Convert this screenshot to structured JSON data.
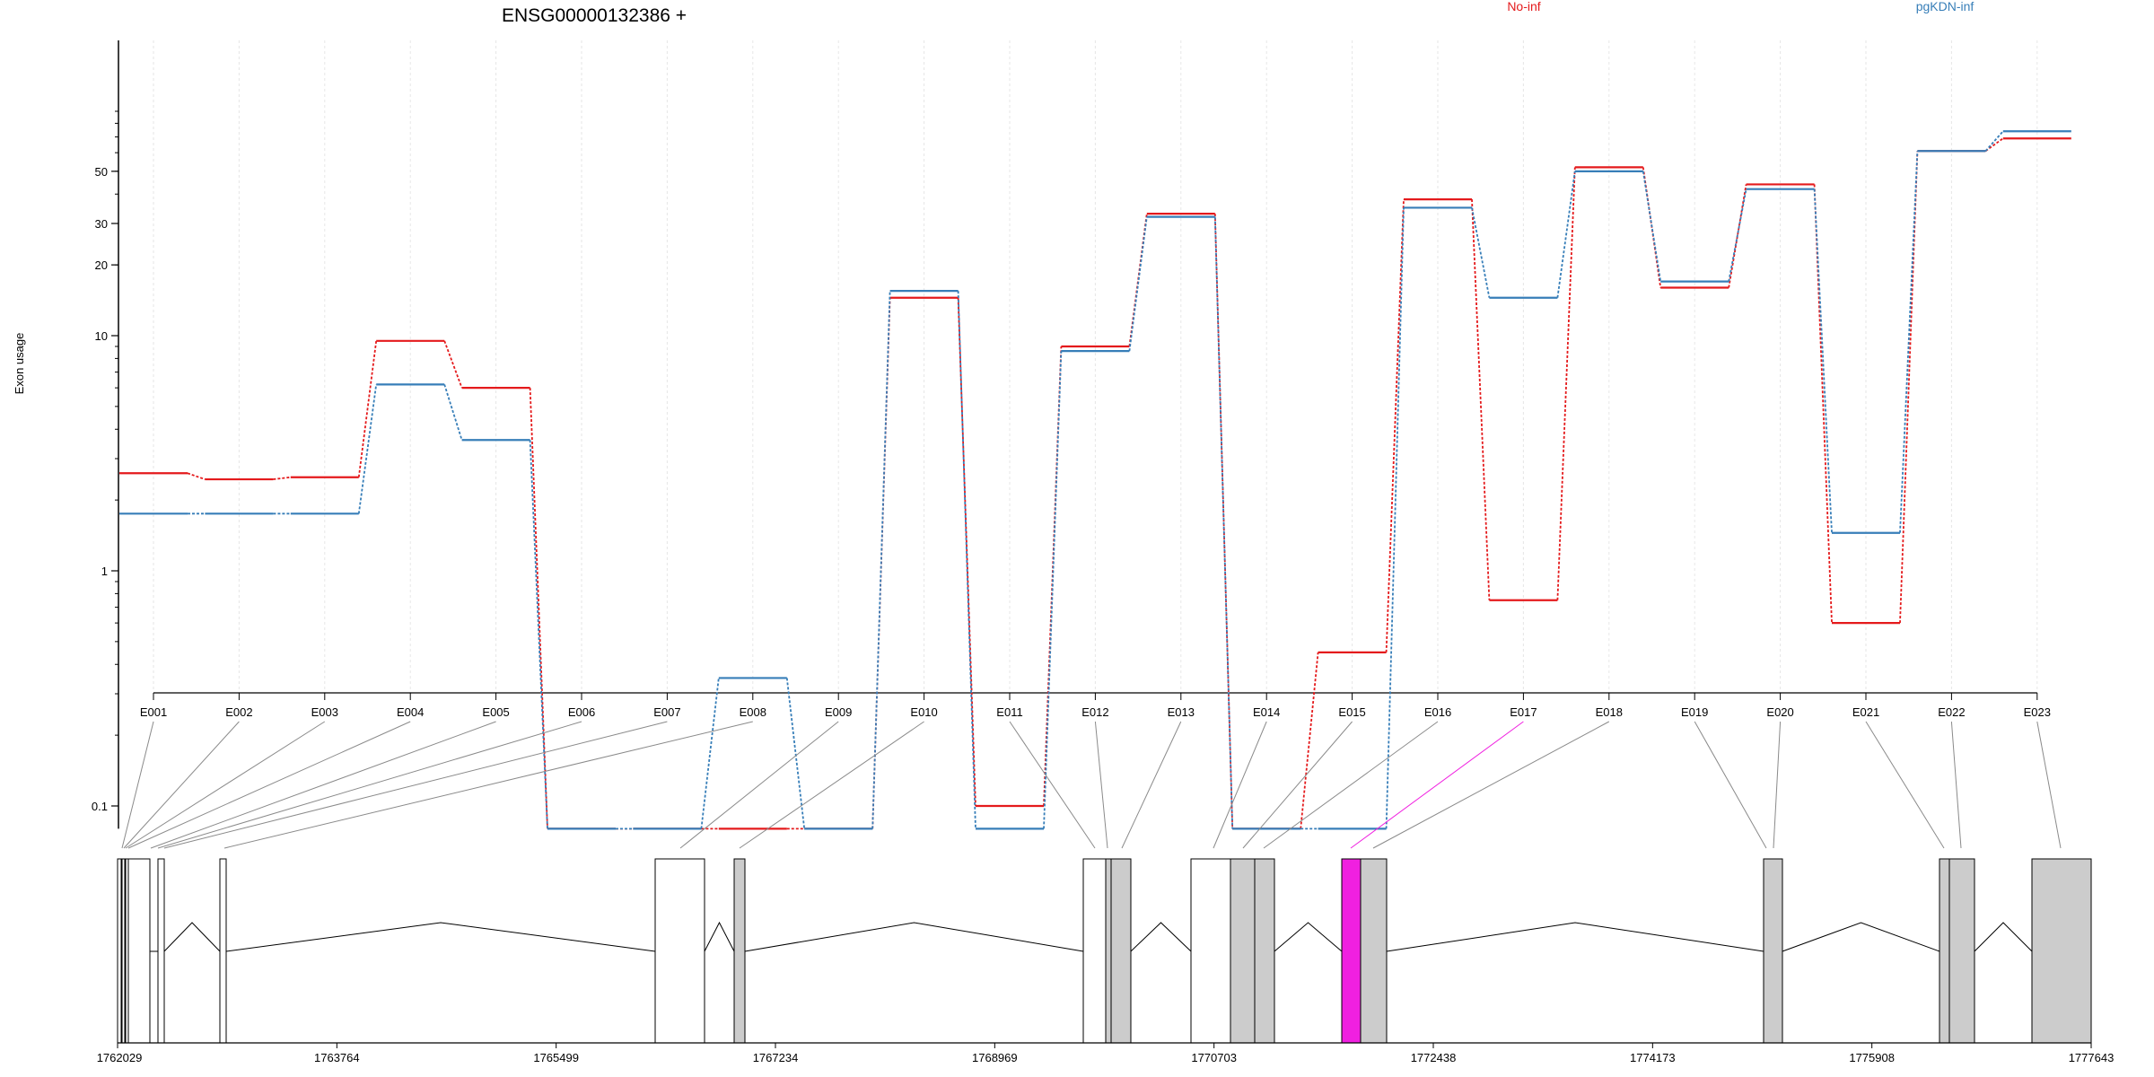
{
  "chart_data": {
    "type": "line",
    "title": "ENSG00000132386 +",
    "ylabel": "Exon usage",
    "xlabel": "",
    "y_scale": "log",
    "yticks": [
      0.1,
      1,
      10,
      20,
      30,
      50
    ],
    "grid": "vertical",
    "legend_position": "top-right",
    "categories": [
      "E001",
      "E002",
      "E003",
      "E004",
      "E005",
      "E006",
      "E007",
      "E008",
      "E009",
      "E010",
      "E011",
      "E012",
      "E013",
      "E014",
      "E015",
      "E016",
      "E017",
      "E018",
      "E019",
      "E020",
      "E021",
      "E022",
      "E023"
    ],
    "series": [
      {
        "name": "No-inf",
        "color": "#e41a1c",
        "values": [
          2.6,
          2.45,
          2.5,
          9.5,
          6.0,
          0.08,
          0.08,
          0.08,
          0.08,
          14.5,
          0.1,
          9.0,
          33,
          0.08,
          0.45,
          38,
          0.75,
          52,
          16,
          44,
          0.6,
          61,
          69
        ]
      },
      {
        "name": "pgKDN-inf",
        "color": "#377eb8",
        "values": [
          1.75,
          1.75,
          1.75,
          6.2,
          3.6,
          0.08,
          0.08,
          0.35,
          0.08,
          15.5,
          0.08,
          8.6,
          32,
          0.08,
          0.08,
          35,
          14.5,
          50,
          17,
          42,
          1.45,
          61,
          74
        ]
      }
    ],
    "gene_model": {
      "axis_ticks": [
        "1762029",
        "1763764",
        "1765499",
        "1767234",
        "1768969",
        "1770703",
        "1772438",
        "1774173",
        "1775908",
        "1777643"
      ],
      "highlight_exon": "E017",
      "highlight_color": "#f020e0",
      "exon_fill": "#cccccc"
    }
  }
}
